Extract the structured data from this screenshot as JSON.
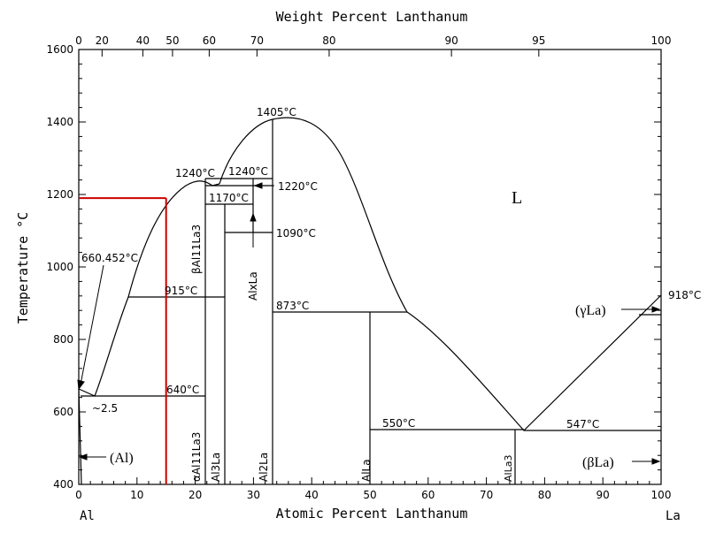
{
  "diagram": {
    "top_axis_title": "Weight Percent Lanthanum",
    "bottom_axis_title": "Atomic Percent Lanthanum",
    "y_axis_title": "Temperature °C",
    "left_element": "Al",
    "right_element": "La",
    "liquid_label": "L",
    "colors": {
      "line": "#000000",
      "highlight": "#cc0000"
    }
  },
  "chart_data": {
    "type": "line",
    "xlim": [
      0,
      100
    ],
    "ylim": [
      400,
      1600
    ],
    "x_ticks": [
      "0",
      "10",
      "20",
      "30",
      "40",
      "50",
      "60",
      "70",
      "80",
      "90",
      "100"
    ],
    "x_tick_values": [
      0,
      10,
      20,
      30,
      40,
      50,
      60,
      70,
      80,
      90,
      100
    ],
    "y_ticks": [
      "400",
      "600",
      "800",
      "1000",
      "1200",
      "1400",
      "1600"
    ],
    "y_tick_values": [
      400,
      600,
      800,
      1000,
      1200,
      1400,
      1600
    ],
    "top_ticks": [
      "0",
      "20",
      "40",
      "50",
      "60",
      "70",
      "80",
      "90",
      "95",
      "100"
    ],
    "top_tick_positions_at": [
      0,
      4.0,
      11.0,
      16.1,
      22.4,
      30.6,
      43.0,
      64.0,
      79.0,
      100
    ],
    "highlight_line": {
      "x": 15,
      "y": 1190
    },
    "labels": {
      "t_1405": "1405°C",
      "t_1240a": "1240°C",
      "t_1240b": "1240°C",
      "t_1220": "1220°C",
      "t_1170": "1170°C",
      "t_1090": "1090°C",
      "t_915": "915°C",
      "t_873": "873°C",
      "t_660": "660.452°C",
      "t_640": "640°C",
      "t_550": "550°C",
      "t_547": "547°C",
      "t_918": "918°C",
      "approx": "~2.5",
      "al_phase": "(Al)",
      "gamma_la": "(γLa)",
      "beta_la": "(βLa)",
      "beta_al11la3": "βAl11La3",
      "alpha_al11la3": "αAl11La3",
      "al3la": "Al3La",
      "al2la": "Al2La",
      "alxla": "AlxLa",
      "alla": "AlLa",
      "alla3": "AlLa3"
    }
  }
}
